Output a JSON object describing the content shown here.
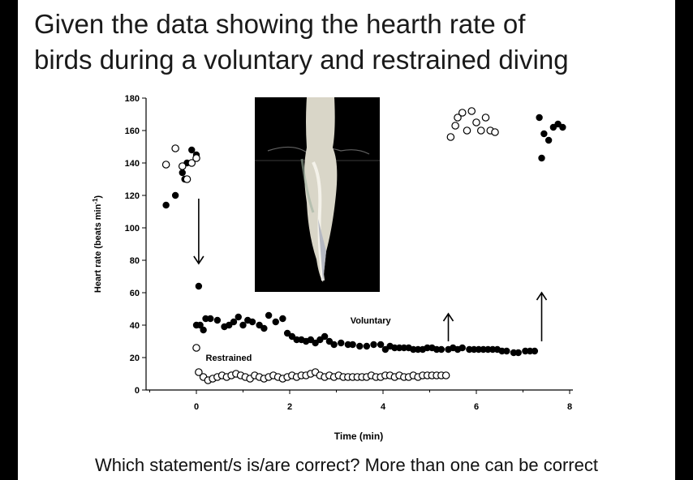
{
  "slide": {
    "title_line1": "Given the data showing the hearth rate of",
    "title_line2": "birds during a voluntary and restrained diving",
    "question": "Which statement/s is/are correct? More than one can be correct"
  },
  "chart_data": {
    "type": "scatter",
    "xlabel": "Time (min)",
    "ylabel": "Heart rate (beats min",
    "ylabel_sup": "-1",
    "ylabel_close": ")",
    "xlim": [
      -1,
      8
    ],
    "ylim": [
      0,
      180
    ],
    "xticks": [
      0,
      2,
      4,
      6,
      8
    ],
    "yticks": [
      0,
      20,
      40,
      60,
      80,
      100,
      120,
      140,
      160,
      180
    ],
    "grid": false,
    "annotations": [
      {
        "text": "Voluntary",
        "x": 3.3,
        "y": 40
      },
      {
        "text": "Restrained",
        "x": 0.2,
        "y": 17
      }
    ],
    "arrows": [
      {
        "x": 0.05,
        "y_from": 118,
        "y_to": 78,
        "direction": "down"
      },
      {
        "x": 5.4,
        "y_from": 30,
        "y_to": 47,
        "direction": "up"
      },
      {
        "x": 7.4,
        "y_from": 30,
        "y_to": 60,
        "direction": "up"
      }
    ],
    "inset_image": "gannet diving into water",
    "series": [
      {
        "name": "Voluntary",
        "marker": "filled-circle",
        "color": "#000000",
        "points": [
          [
            -0.65,
            114
          ],
          [
            -0.45,
            120
          ],
          [
            -0.3,
            134
          ],
          [
            -0.25,
            130
          ],
          [
            -0.2,
            140
          ],
          [
            -0.1,
            148
          ],
          [
            0.0,
            145
          ],
          [
            0.05,
            64
          ],
          [
            0.0,
            40
          ],
          [
            0.08,
            40
          ],
          [
            0.15,
            37
          ],
          [
            0.2,
            44
          ],
          [
            0.3,
            44
          ],
          [
            0.45,
            43
          ],
          [
            0.6,
            39
          ],
          [
            0.7,
            40
          ],
          [
            0.8,
            42
          ],
          [
            0.9,
            45
          ],
          [
            1.0,
            40
          ],
          [
            1.1,
            43
          ],
          [
            1.2,
            42
          ],
          [
            1.35,
            40
          ],
          [
            1.45,
            38
          ],
          [
            1.55,
            46
          ],
          [
            1.7,
            42
          ],
          [
            1.85,
            44
          ],
          [
            1.95,
            35
          ],
          [
            2.05,
            33
          ],
          [
            2.15,
            31
          ],
          [
            2.25,
            31
          ],
          [
            2.35,
            30
          ],
          [
            2.45,
            31
          ],
          [
            2.55,
            29
          ],
          [
            2.65,
            31
          ],
          [
            2.75,
            33
          ],
          [
            2.85,
            30
          ],
          [
            2.95,
            28
          ],
          [
            3.1,
            29
          ],
          [
            3.25,
            28
          ],
          [
            3.35,
            28
          ],
          [
            3.5,
            27
          ],
          [
            3.65,
            27
          ],
          [
            3.8,
            28
          ],
          [
            3.95,
            28
          ],
          [
            4.05,
            25
          ],
          [
            4.15,
            27
          ],
          [
            4.25,
            26
          ],
          [
            4.35,
            26
          ],
          [
            4.45,
            26
          ],
          [
            4.55,
            26
          ],
          [
            4.65,
            25
          ],
          [
            4.75,
            25
          ],
          [
            4.85,
            25
          ],
          [
            4.95,
            26
          ],
          [
            5.05,
            26
          ],
          [
            5.15,
            25
          ],
          [
            5.25,
            25
          ],
          [
            5.4,
            25
          ],
          [
            5.5,
            26
          ],
          [
            5.6,
            25
          ],
          [
            5.7,
            26
          ],
          [
            5.85,
            25
          ],
          [
            5.95,
            25
          ],
          [
            6.05,
            25
          ],
          [
            6.15,
            25
          ],
          [
            6.25,
            25
          ],
          [
            6.35,
            25
          ],
          [
            6.45,
            25
          ],
          [
            6.55,
            24
          ],
          [
            6.65,
            24
          ],
          [
            6.8,
            23
          ],
          [
            6.9,
            23
          ],
          [
            7.05,
            24
          ],
          [
            7.15,
            24
          ],
          [
            7.25,
            24
          ],
          [
            7.35,
            168
          ],
          [
            7.45,
            158
          ],
          [
            7.55,
            154
          ],
          [
            7.65,
            162
          ],
          [
            7.75,
            164
          ],
          [
            7.85,
            162
          ],
          [
            7.4,
            143
          ]
        ]
      },
      {
        "name": "Restrained",
        "marker": "open-circle",
        "color": "#000000",
        "points": [
          [
            -0.65,
            139
          ],
          [
            -0.45,
            149
          ],
          [
            -0.3,
            138
          ],
          [
            -0.2,
            130
          ],
          [
            -0.1,
            140
          ],
          [
            0.0,
            143
          ],
          [
            0.0,
            26
          ],
          [
            0.05,
            11
          ],
          [
            0.15,
            8
          ],
          [
            0.25,
            6
          ],
          [
            0.35,
            7
          ],
          [
            0.45,
            8
          ],
          [
            0.55,
            9
          ],
          [
            0.65,
            8
          ],
          [
            0.75,
            9
          ],
          [
            0.85,
            10
          ],
          [
            0.95,
            9
          ],
          [
            1.05,
            8
          ],
          [
            1.15,
            7
          ],
          [
            1.25,
            9
          ],
          [
            1.35,
            8
          ],
          [
            1.45,
            7
          ],
          [
            1.55,
            8
          ],
          [
            1.65,
            9
          ],
          [
            1.75,
            8
          ],
          [
            1.85,
            7
          ],
          [
            1.95,
            8
          ],
          [
            2.05,
            9
          ],
          [
            2.15,
            8
          ],
          [
            2.25,
            9
          ],
          [
            2.35,
            9
          ],
          [
            2.45,
            10
          ],
          [
            2.55,
            11
          ],
          [
            2.65,
            9
          ],
          [
            2.75,
            8
          ],
          [
            2.85,
            9
          ],
          [
            2.95,
            8
          ],
          [
            3.05,
            9
          ],
          [
            3.15,
            8
          ],
          [
            3.25,
            8
          ],
          [
            3.35,
            8
          ],
          [
            3.45,
            8
          ],
          [
            3.55,
            8
          ],
          [
            3.65,
            8
          ],
          [
            3.75,
            9
          ],
          [
            3.85,
            8
          ],
          [
            3.95,
            8
          ],
          [
            4.05,
            9
          ],
          [
            4.15,
            9
          ],
          [
            4.25,
            8
          ],
          [
            4.35,
            9
          ],
          [
            4.45,
            8
          ],
          [
            4.55,
            8
          ],
          [
            4.65,
            9
          ],
          [
            4.75,
            8
          ],
          [
            4.85,
            9
          ],
          [
            4.95,
            9
          ],
          [
            5.05,
            9
          ],
          [
            5.15,
            9
          ],
          [
            5.25,
            9
          ],
          [
            5.35,
            9
          ],
          [
            5.45,
            156
          ],
          [
            5.55,
            163
          ],
          [
            5.6,
            168
          ],
          [
            5.7,
            171
          ],
          [
            5.8,
            160
          ],
          [
            5.9,
            172
          ],
          [
            6.0,
            165
          ],
          [
            6.1,
            160
          ],
          [
            6.2,
            168
          ],
          [
            6.3,
            160
          ],
          [
            6.4,
            159
          ]
        ]
      }
    ]
  }
}
